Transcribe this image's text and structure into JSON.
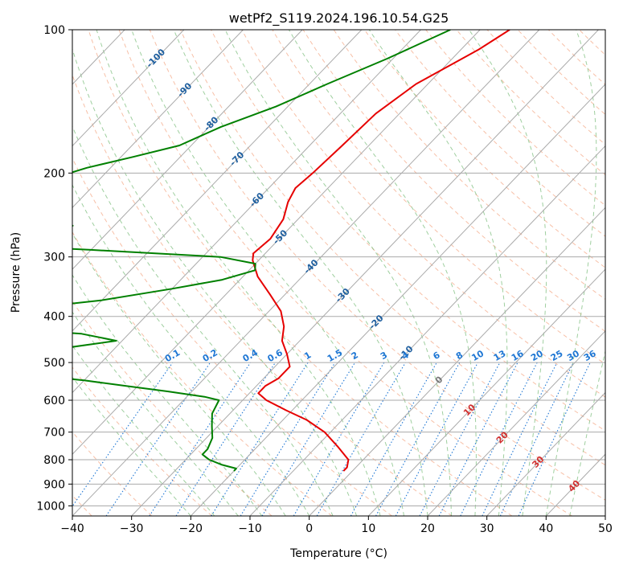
{
  "chart_data": {
    "type": "line",
    "subtype": "skew-t log-p diagram",
    "title": "wetPf2_S119.2024.196.10.54.G25",
    "xlabel": "Temperature (°C)",
    "ylabel": "Pressure (hPa)",
    "xlim": [
      -40,
      50
    ],
    "ylim": [
      1050,
      100
    ],
    "y_scale": "log",
    "x_ticks": [
      -40,
      -30,
      -20,
      -10,
      0,
      10,
      20,
      30,
      40,
      50
    ],
    "y_ticks": [
      100,
      200,
      300,
      400,
      500,
      600,
      700,
      800,
      900,
      1000
    ],
    "grid": true,
    "colors": {
      "temperature": "#e60000",
      "dewpoint": "#008000",
      "isotherm": "#aaaaaa",
      "dry_adiabat": "#f4a582",
      "moist_adiabat": "#7fbf7f",
      "mixing_ratio": "#1f77d4",
      "isotherm_label": "#1f5f9f",
      "zero_isotherm_label": "#777777",
      "warm_isotherm_label": "#d03030"
    },
    "isotherm_labels": [
      {
        "text": "-100",
        "temp": -100,
        "pressure": 115
      },
      {
        "text": "-90",
        "temp": -90,
        "pressure": 134
      },
      {
        "text": "-80",
        "temp": -80,
        "pressure": 158
      },
      {
        "text": "-70",
        "temp": -70,
        "pressure": 187
      },
      {
        "text": "-60",
        "temp": -60,
        "pressure": 228
      },
      {
        "text": "-50",
        "temp": -50,
        "pressure": 273
      },
      {
        "text": "-40",
        "temp": -40,
        "pressure": 315
      },
      {
        "text": "-30",
        "temp": -30,
        "pressure": 362
      },
      {
        "text": "-20",
        "temp": -20,
        "pressure": 412
      },
      {
        "text": "-10",
        "temp": -10,
        "pressure": 478
      },
      {
        "text": "0",
        "temp": 0,
        "pressure": 545
      },
      {
        "text": "10",
        "temp": 10,
        "pressure": 630
      },
      {
        "text": "20",
        "temp": 20,
        "pressure": 720
      },
      {
        "text": "30",
        "temp": 30,
        "pressure": 810
      },
      {
        "text": "40",
        "temp": 40,
        "pressure": 910
      }
    ],
    "mixing_ratio_labels": [
      "0.1",
      "0.2",
      "0.4",
      "0.6",
      "1",
      "1.5",
      "2",
      "3",
      "4",
      "6",
      "8",
      "10",
      "13",
      "16",
      "20",
      "25",
      "30",
      "36"
    ],
    "mixing_ratio_label_pressure": 500,
    "series": [
      {
        "key": "temperature",
        "pressure": [
          100,
          110,
          130,
          150,
          175,
          200,
          215,
          230,
          250,
          275,
          295,
          305,
          330,
          360,
          390,
          420,
          450,
          480,
          510,
          540,
          560,
          580,
          600,
          630,
          660,
          700,
          750,
          800,
          830,
          845
        ],
        "temp": [
          -45,
          -47,
          -52,
          -54,
          -54.5,
          -55,
          -55.5,
          -54.5,
          -52.5,
          -51.5,
          -52,
          -51,
          -47.5,
          -42.5,
          -38,
          -35,
          -33,
          -30,
          -27.5,
          -27.5,
          -28.5,
          -28.5,
          -26,
          -21,
          -16,
          -11,
          -6.5,
          -2.5,
          -1.5,
          -1.5
        ]
      },
      {
        "key": "dewpoint",
        "pressure": [
          100,
          115,
          130,
          145,
          160,
          175,
          185,
          195,
          205,
          215,
          225,
          235,
          245,
          258,
          270,
          280,
          290,
          300,
          310,
          320,
          335,
          350,
          370,
          390,
          398,
          405,
          415,
          425,
          435,
          450,
          465,
          480,
          490,
          500,
          515,
          525,
          535,
          545,
          560,
          575,
          590,
          600,
          640,
          680,
          720,
          760,
          780,
          800,
          820,
          835,
          845
        ],
        "temp": [
          -55,
          -61,
          -67,
          -72,
          -78,
          -82,
          -88,
          -94,
          -98,
          -98,
          -95,
          -100,
          -97,
          -87,
          -96,
          -107,
          -80,
          -57,
          -50,
          -49,
          -53,
          -60,
          -70,
          -85,
          -97,
          -96,
          -95,
          -80,
          -68,
          -61,
          -68,
          -82,
          -76,
          -70,
          -67,
          -72,
          -67,
          -60,
          -52,
          -44,
          -37,
          -34,
          -33,
          -31,
          -29,
          -28,
          -28,
          -26,
          -23,
          -20,
          -20
        ]
      }
    ]
  }
}
